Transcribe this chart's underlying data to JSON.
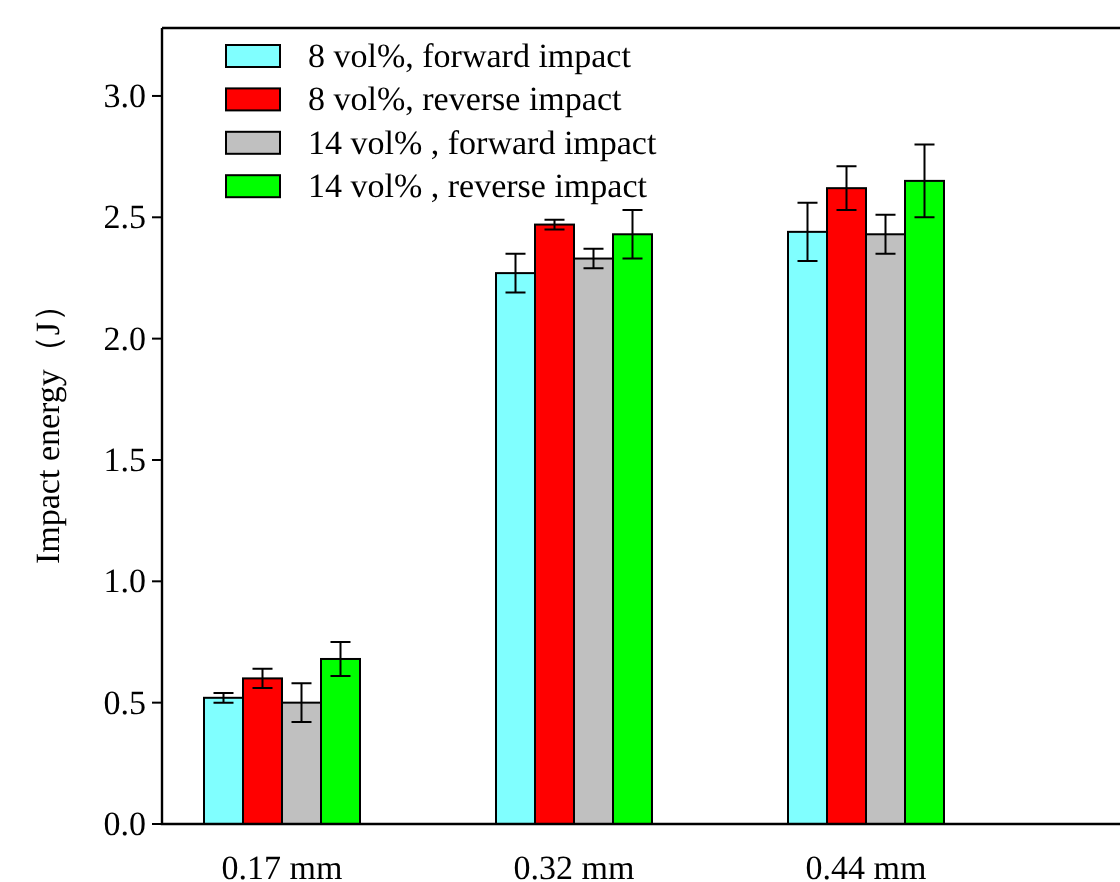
{
  "chart_data": {
    "type": "bar",
    "ylabel": "Impact energy（J）",
    "categories": [
      "0.17 mm",
      "0.32 mm",
      "0.44 mm"
    ],
    "series": [
      {
        "name": "8 vol%, forward impact",
        "color": "#80ffff",
        "values": [
          0.52,
          2.27,
          2.44
        ],
        "errors": [
          0.02,
          0.08,
          0.12
        ]
      },
      {
        "name": "8 vol%, reverse impact",
        "color": "#ff0000",
        "values": [
          0.6,
          2.47,
          2.62
        ],
        "errors": [
          0.04,
          0.02,
          0.09
        ]
      },
      {
        "name": "14 vol% , forward impact",
        "color": "#c0c0c0",
        "values": [
          0.5,
          2.33,
          2.43
        ],
        "errors": [
          0.08,
          0.04,
          0.08
        ]
      },
      {
        "name": "14 vol% , reverse impact",
        "color": "#00ff00",
        "values": [
          0.68,
          2.43,
          2.65
        ],
        "errors": [
          0.07,
          0.1,
          0.15
        ]
      }
    ],
    "ylim": [
      0,
      3.28
    ],
    "yticks": [
      {
        "value": 0.0,
        "label": "0.0"
      },
      {
        "value": 0.5,
        "label": "0.5"
      },
      {
        "value": 1.0,
        "label": "1.0"
      },
      {
        "value": 1.5,
        "label": "1.5"
      },
      {
        "value": 2.0,
        "label": "2.0"
      },
      {
        "value": 2.5,
        "label": "2.5"
      },
      {
        "value": 3.0,
        "label": "3.0"
      }
    ],
    "grid": false,
    "legend": "top left"
  }
}
